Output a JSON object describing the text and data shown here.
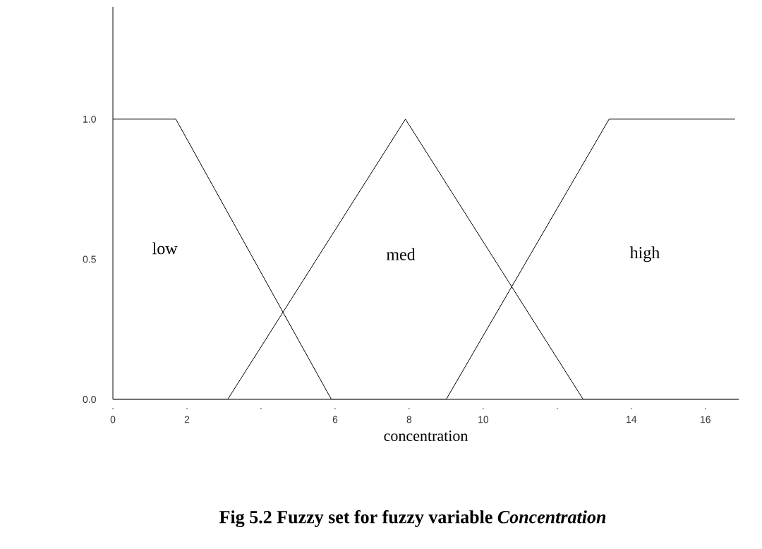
{
  "chart_data": {
    "type": "line",
    "title": "Fig 5.2 Fuzzy set for fuzzy variable *Concentration*",
    "xlabel": "concentration",
    "series": [
      {
        "color": "#000000",
        "x": [
          0,
          1.7,
          5.9,
          16.9
        ],
        "values": [
          1,
          1,
          0,
          0
        ]
      },
      {
        "color": "#000000",
        "x": [
          0,
          3.1,
          7.9,
          12.7,
          16.9
        ],
        "values": [
          0,
          0,
          1,
          0,
          0
        ]
      },
      {
        "color": "#000000",
        "x": [
          0,
          9.0,
          13.4,
          16.8
        ],
        "values": [
          0,
          0,
          1,
          1
        ]
      }
    ],
    "annotations": [
      "low",
      "med",
      "high"
    ],
    "xlim": [
      0,
      16.9
    ],
    "ylim": [
      0,
      1.4
    ],
    "xticks": [
      0,
      2,
      {
        "value": 4,
        "label": null
      },
      6,
      8,
      10,
      {
        "value": 12,
        "label": null
      },
      14,
      16
    ],
    "yticks": [
      {
        "value": 0,
        "label": "0.0"
      },
      {
        "value": 0.5,
        "label": "0.5"
      },
      {
        "value": 1,
        "label": "1.0"
      }
    ],
    "marker": "none",
    "line_style": "solid",
    "grid": false
  }
}
